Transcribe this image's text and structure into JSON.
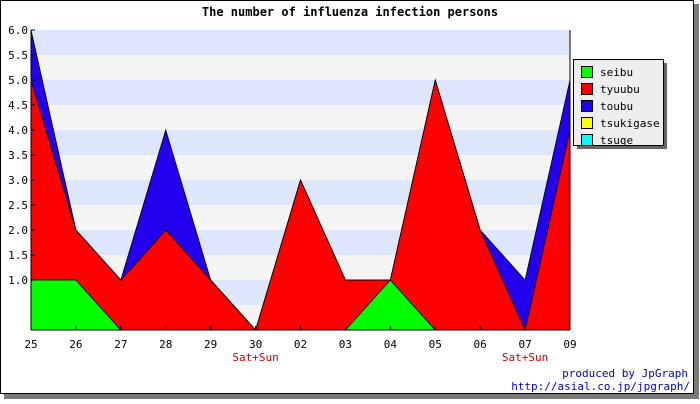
{
  "chart_data": {
    "type": "area",
    "title": "The number of influenza infection persons",
    "categories": [
      "25",
      "26",
      "27",
      "28",
      "29",
      "30",
      "02",
      "03",
      "04",
      "05",
      "06",
      "07",
      "09"
    ],
    "weekend_labels": [
      {
        "category": "30",
        "text": "Sat+Sun"
      },
      {
        "category": "07",
        "text": "Sat+Sun"
      }
    ],
    "stacked": true,
    "series": [
      {
        "name": "seibu",
        "color": "#00ff00",
        "values": [
          1,
          1,
          0,
          0,
          0,
          0,
          0,
          0,
          1,
          0,
          0,
          0,
          0
        ]
      },
      {
        "name": "tyuubu",
        "color": "#ff0000",
        "values": [
          4,
          1,
          1,
          2,
          1,
          0,
          3,
          1,
          0,
          5,
          2,
          0,
          4
        ]
      },
      {
        "name": "toubu",
        "color": "#2200ee",
        "values": [
          1,
          0,
          0,
          2,
          0,
          0,
          0,
          0,
          0,
          0,
          0,
          1,
          1
        ]
      },
      {
        "name": "tsukigase",
        "color": "#ffff00",
        "values": [
          0,
          0,
          0,
          0,
          0,
          0,
          0,
          0,
          0,
          0,
          0,
          0,
          0
        ]
      },
      {
        "name": "tsuge",
        "color": "#00ffff",
        "values": [
          0,
          0,
          0,
          0,
          0,
          0,
          0,
          0,
          0,
          0,
          0,
          0,
          0
        ]
      }
    ],
    "ylim": [
      0,
      6
    ],
    "yticks": [
      "6.0",
      "5.5",
      "5.0",
      "4.5",
      "4.0",
      "3.5",
      "3.0",
      "2.5",
      "2.0",
      "1.5",
      "1.0"
    ],
    "xlabel": "",
    "ylabel": "",
    "grid": true,
    "legend_position": "right",
    "band_colors": [
      "#dde6fb",
      "#f4f4f4"
    ]
  },
  "credit": {
    "line1": "produced by JpGraph",
    "line2": "http://asial.co.jp/jpgraph/"
  }
}
